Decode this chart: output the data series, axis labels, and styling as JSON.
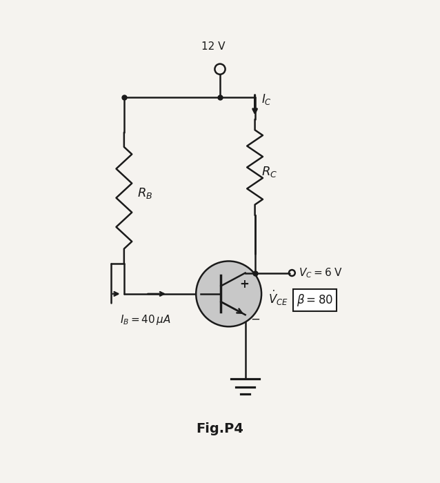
{
  "title": "Fig.P4",
  "background_color": "#f5f3ef",
  "voltage_supply": "12 V",
  "R_B_label": "$R_B$",
  "R_C_label": "$R_C$",
  "I_C_label": "$I_C$",
  "I_B_label": "$I_B = 40\\,\\mu A$",
  "V_C_label": "$V_C = 6$ V",
  "V_CE_label": "$\\dot{V}_{CE}$",
  "beta_label": "$\\beta = 80$",
  "plus_label": "+",
  "minus_label": "−",
  "line_color": "#1a1a1a",
  "resistor_color": "#1a1a1a",
  "transistor_circle_color": "#c8c8c8",
  "transistor_circle_edge": "#1a1a1a",
  "box_facecolor": "#ffffff",
  "box_edgecolor": "#1a1a1a"
}
